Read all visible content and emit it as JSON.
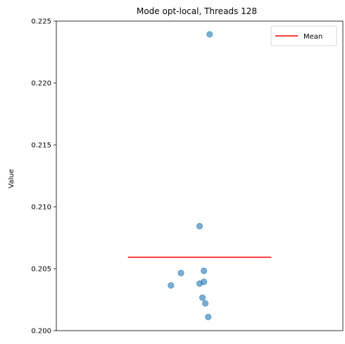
{
  "chart_data": {
    "type": "scatter",
    "title": "Mode opt-local, Threads 128",
    "xlabel": "",
    "ylabel": "Value",
    "ylim": [
      0.2,
      0.225
    ],
    "xlim": [
      -1,
      1
    ],
    "yticks": [
      0.2,
      0.205,
      0.21,
      0.215,
      0.22,
      0.225
    ],
    "ytick_labels": [
      "0.200",
      "0.205",
      "0.210",
      "0.215",
      "0.220",
      "0.225"
    ],
    "show_xticks": false,
    "grid": false,
    "legend_position": "top-right",
    "points": [
      {
        "x": 0.07,
        "y": 0.22393
      },
      {
        "x": 0.0,
        "y": 0.20844
      },
      {
        "x": 0.03,
        "y": 0.20483
      },
      {
        "x": -0.13,
        "y": 0.20465
      },
      {
        "x": 0.03,
        "y": 0.20394
      },
      {
        "x": 0.0,
        "y": 0.2038
      },
      {
        "x": -0.2,
        "y": 0.20365
      },
      {
        "x": 0.02,
        "y": 0.20266
      },
      {
        "x": 0.04,
        "y": 0.2022
      },
      {
        "x": 0.06,
        "y": 0.2011
      }
    ],
    "mean": {
      "label": "Mean",
      "value": 0.20593,
      "x_range": [
        -0.5,
        0.5
      ]
    },
    "colors": {
      "points": "#1f77b4",
      "mean": "#ff0000"
    }
  }
}
